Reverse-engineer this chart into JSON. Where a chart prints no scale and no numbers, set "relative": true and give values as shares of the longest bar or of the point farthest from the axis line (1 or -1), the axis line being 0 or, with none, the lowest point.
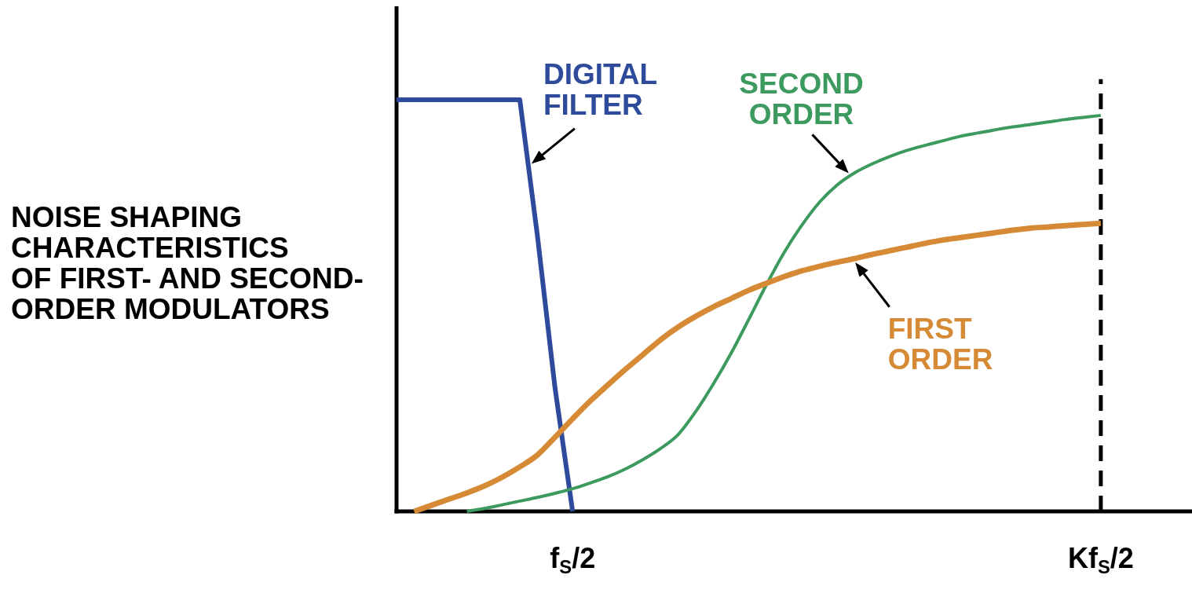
{
  "chart_data": {
    "type": "line",
    "title": "NOISE SHAPING\nCHARACTERISTICS\nOF FIRST- AND SECOND-\nORDER MODULATORS",
    "relative": true,
    "categories": [
      null,
      null,
      null,
      null,
      null,
      null,
      null,
      null,
      null,
      null,
      "f$_{S}$/2",
      null,
      null,
      null,
      null,
      null,
      null,
      null,
      null,
      null,
      null,
      null,
      null,
      null,
      null,
      null,
      null,
      null,
      null,
      null,
      null,
      null,
      null,
      null,
      null,
      null,
      null,
      null,
      null,
      null,
      "Kf$_{S}$/2",
      null,
      null,
      null,
      null,
      null
    ],
    "series": [
      {
        "name": "DIGITAL FILTER",
        "color": "#2e4b9b",
        "values": [
          1,
          1,
          1,
          1,
          1,
          1,
          1,
          1,
          0.67,
          0.3,
          0,
          null,
          null,
          null,
          null,
          null,
          null,
          null,
          null,
          null,
          null,
          null,
          null,
          null,
          null,
          null,
          null,
          null,
          null,
          null,
          null,
          null,
          null,
          null,
          null,
          null,
          null,
          null,
          null,
          null,
          null,
          null,
          null,
          null,
          null,
          null
        ]
      },
      {
        "name": "SECOND ORDER",
        "color": "#3d9a5e",
        "values": [
          null,
          null,
          null,
          null,
          0,
          0.007,
          0.016,
          0.025,
          0.034,
          0.044,
          0.055,
          0.069,
          0.084,
          0.103,
          0.126,
          0.153,
          0.187,
          0.243,
          0.31,
          0.384,
          0.466,
          0.55,
          0.628,
          0.694,
          0.75,
          0.792,
          0.822,
          0.844,
          0.862,
          0.877,
          0.889,
          0.9,
          0.911,
          0.919,
          0.927,
          0.934,
          0.94,
          0.946,
          0.952,
          0.957,
          0.962,
          null,
          null,
          null,
          null,
          null
        ]
      },
      {
        "name": "FIRST ORDER",
        "color": "#d68a36",
        "values": [
          null,
          0,
          0.015,
          0.03,
          0.045,
          0.062,
          0.083,
          0.108,
          0.137,
          0.18,
          0.225,
          0.268,
          0.307,
          0.345,
          0.381,
          0.417,
          0.448,
          0.474,
          0.497,
          0.517,
          0.537,
          0.554,
          0.57,
          0.584,
          0.595,
          0.605,
          0.614,
          0.624,
          0.633,
          0.642,
          0.651,
          0.659,
          0.665,
          0.671,
          0.677,
          0.683,
          0.688,
          0.691,
          0.694,
          0.697,
          0.7,
          null,
          null,
          null,
          null,
          null
        ]
      }
    ],
    "ref_lines": [
      {
        "axis": "x",
        "value": "Kf$_{S}$/2",
        "color": "#000000",
        "line_style": "dashed"
      }
    ]
  }
}
